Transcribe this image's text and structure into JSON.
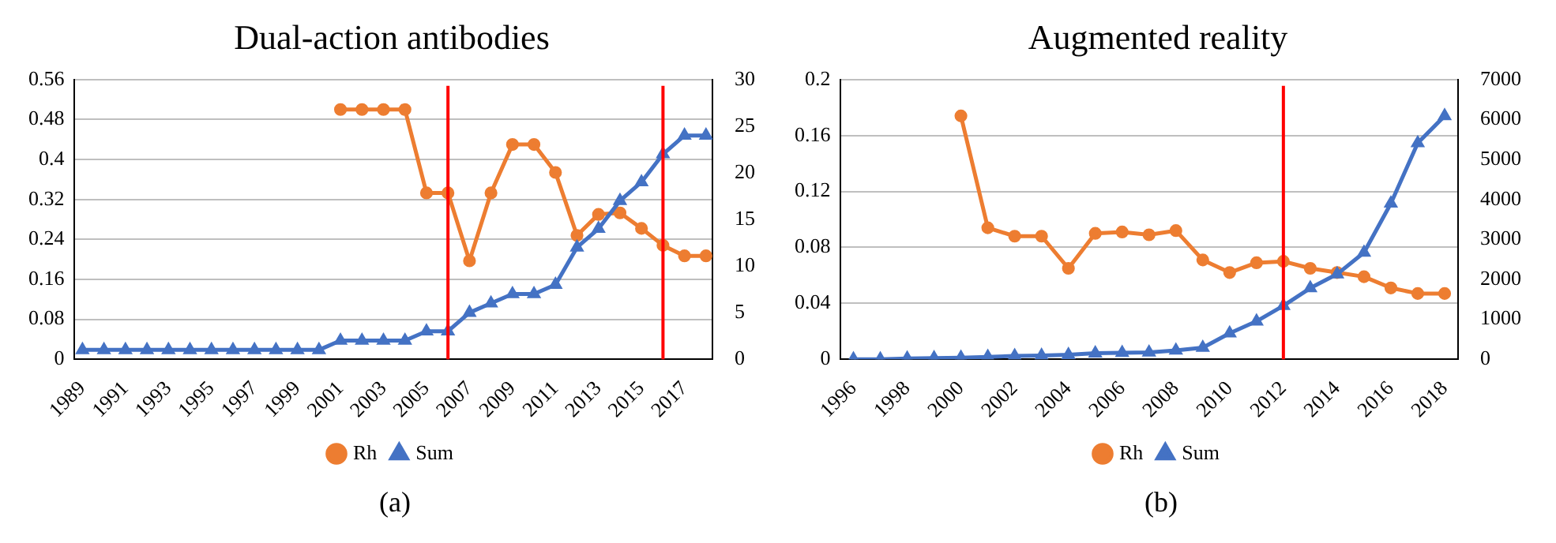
{
  "chart_data": [
    {
      "type": "line",
      "title": "Dual-action antibodies",
      "x": [
        1989,
        1990,
        1991,
        1992,
        1993,
        1994,
        1995,
        1996,
        1997,
        1998,
        1999,
        2000,
        2001,
        2002,
        2003,
        2004,
        2005,
        2006,
        2007,
        2008,
        2009,
        2010,
        2011,
        2012,
        2013,
        2014,
        2015,
        2016,
        2017,
        2018
      ],
      "series": [
        {
          "name": "Rh",
          "color": "#ed7d31",
          "marker": "circle",
          "x": [
            2001,
            2002,
            2003,
            2004,
            2005,
            2006,
            2007,
            2008,
            2009,
            2010,
            2011,
            2012,
            2013,
            2014,
            2015,
            2016,
            2017,
            2018
          ],
          "values": [
            0.5,
            0.5,
            0.5,
            0.5,
            0.333,
            0.333,
            0.197,
            0.333,
            0.43,
            0.43,
            0.374,
            0.248,
            0.29,
            0.293,
            0.262,
            0.228,
            0.207,
            0.207
          ]
        },
        {
          "name": "Sum",
          "color": "#4472c4",
          "marker": "triangle",
          "axis": "y2",
          "values": [
            1,
            1,
            1,
            1,
            1,
            1,
            1,
            1,
            1,
            1,
            1,
            1,
            2,
            2,
            2,
            2,
            3,
            3,
            5,
            6,
            7,
            7,
            8,
            12,
            14,
            17,
            19,
            22,
            24,
            24
          ]
        }
      ],
      "xlim": [
        1988.6,
        2018.3
      ],
      "xticks": [
        1989,
        1991,
        1993,
        1995,
        1997,
        1999,
        2001,
        2003,
        2005,
        2007,
        2009,
        2011,
        2013,
        2015,
        2017
      ],
      "ylim": [
        0,
        0.56
      ],
      "yticks": [
        0,
        0.08,
        0.16,
        0.24,
        0.32,
        0.4,
        0.48,
        0.56
      ],
      "y2lim": [
        0,
        30
      ],
      "y2ticks": [
        0,
        5,
        10,
        15,
        20,
        25,
        30
      ],
      "ref_lines": [
        {
          "axis": "x",
          "value": 2006,
          "color": "#ff0000"
        },
        {
          "axis": "x",
          "value": 2016,
          "color": "#ff0000"
        }
      ],
      "grid": "y",
      "legend": "bottom",
      "annotations": [
        "(a)"
      ]
    },
    {
      "type": "line",
      "title": "Augmented reality",
      "x": [
        1996,
        1997,
        1998,
        1999,
        2000,
        2001,
        2002,
        2003,
        2004,
        2005,
        2006,
        2007,
        2008,
        2009,
        2010,
        2011,
        2012,
        2013,
        2014,
        2015,
        2016,
        2017,
        2018
      ],
      "series": [
        {
          "name": "Rh",
          "color": "#ed7d31",
          "marker": "circle",
          "x": [
            2000,
            2001,
            2002,
            2003,
            2004,
            2005,
            2006,
            2007,
            2008,
            2009,
            2010,
            2011,
            2012,
            2013,
            2014,
            2015,
            2016,
            2017,
            2018
          ],
          "values": [
            0.174,
            0.094,
            0.088,
            0.088,
            0.065,
            0.09,
            0.091,
            0.089,
            0.092,
            0.071,
            0.062,
            0.069,
            0.07,
            0.065,
            0.062,
            0.059,
            0.051,
            0.047,
            0.047
          ]
        },
        {
          "name": "Sum",
          "color": "#4472c4",
          "marker": "triangle",
          "axis": "y2",
          "values": [
            0,
            0,
            20,
            30,
            40,
            60,
            80,
            90,
            110,
            150,
            160,
            170,
            220,
            290,
            650,
            950,
            1340,
            1780,
            2130,
            2670,
            3900,
            5410,
            6090
          ]
        }
      ],
      "xlim": [
        1995.5,
        2018.5
      ],
      "xticks": [
        1996,
        1998,
        2000,
        2002,
        2004,
        2006,
        2008,
        2010,
        2012,
        2014,
        2016,
        2018
      ],
      "ylim": [
        0,
        0.2
      ],
      "yticks": [
        0,
        0.04,
        0.08,
        0.12,
        0.16,
        0.2
      ],
      "y2lim": [
        0,
        7000
      ],
      "y2ticks": [
        0,
        1000,
        2000,
        3000,
        4000,
        5000,
        6000,
        7000
      ],
      "ref_lines": [
        {
          "axis": "x",
          "value": 2012,
          "color": "#ff0000"
        }
      ],
      "grid": "y",
      "legend": "bottom",
      "annotations": [
        "(b)"
      ]
    }
  ]
}
